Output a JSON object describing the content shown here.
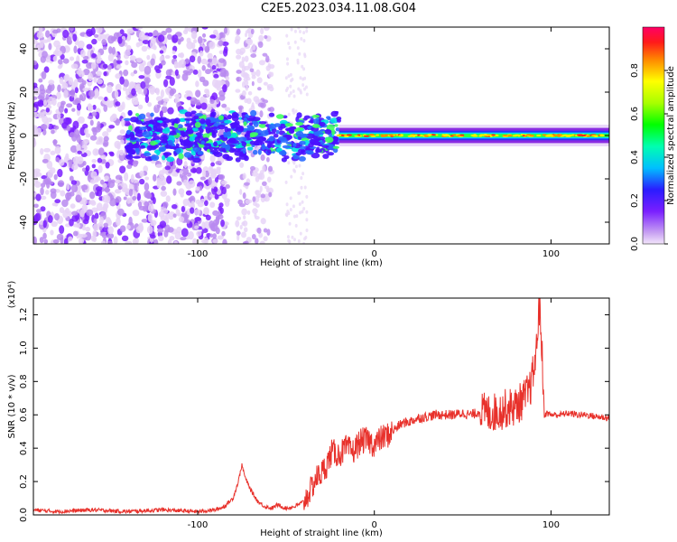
{
  "title": "C2E5.2023.034.11.08.G04",
  "colors": {
    "axis": "#000000",
    "snr_line": "#e8312b",
    "colormap": [
      "#e3c8f5",
      "#8a2be2",
      "#3a00ff",
      "#00e5ff",
      "#00ff40",
      "#ffff00",
      "#ff2020",
      "#ff0066"
    ]
  },
  "chart_data": [
    {
      "type": "heatmap",
      "xlabel": "Height of straight line (km)",
      "ylabel": "Frequency (Hz)",
      "xlim": [
        -193,
        133
      ],
      "ylim": [
        -50,
        50
      ],
      "x_ticks": [
        -100,
        0,
        100
      ],
      "y_ticks": [
        -40,
        -20,
        0,
        20,
        40
      ],
      "colorbar": {
        "label": "Normalized spectral amplitude",
        "range": [
          0.0,
          1.0
        ],
        "ticks": [
          "0.0",
          "0.2",
          "0.4",
          "0.6",
          "0.8"
        ]
      },
      "grid": false
    },
    {
      "type": "line",
      "xlabel": "Height of straight line (km)",
      "ylabel": "SNR (10 * v/v)",
      "y_multiplier": "(x10⁴)",
      "xlim": [
        -193,
        133
      ],
      "ylim": [
        0,
        1.3
      ],
      "x_ticks": [
        -100,
        0,
        100
      ],
      "y_ticks": [
        "0.0",
        "0.2",
        "0.4",
        "0.6",
        "0.8",
        "1.0",
        "1.2"
      ],
      "grid": false,
      "series": [
        {
          "color": "#e8312b",
          "x": [
            -193,
            -180,
            -160,
            -140,
            -120,
            -100,
            -90,
            -85,
            -80,
            -77,
            -75,
            -73,
            -70,
            -66,
            -62,
            -58,
            -55,
            -50,
            -45,
            -40,
            -36,
            -33,
            -30,
            -27,
            -24,
            -20,
            -16,
            -12,
            -8,
            -4,
            0,
            4,
            8,
            12,
            16,
            20,
            25,
            30,
            35,
            40,
            45,
            50,
            55,
            60,
            65,
            70,
            75,
            80,
            85,
            88,
            90,
            92,
            93,
            94,
            95,
            96,
            98,
            100,
            105,
            110,
            115,
            120,
            125,
            133
          ],
          "y": [
            0.03,
            0.02,
            0.03,
            0.02,
            0.03,
            0.02,
            0.03,
            0.05,
            0.1,
            0.2,
            0.3,
            0.22,
            0.15,
            0.08,
            0.05,
            0.04,
            0.06,
            0.04,
            0.05,
            0.08,
            0.15,
            0.22,
            0.25,
            0.3,
            0.38,
            0.36,
            0.4,
            0.38,
            0.44,
            0.45,
            0.42,
            0.46,
            0.48,
            0.52,
            0.55,
            0.56,
            0.58,
            0.59,
            0.6,
            0.6,
            0.6,
            0.61,
            0.6,
            0.62,
            0.61,
            0.62,
            0.64,
            0.65,
            0.7,
            0.75,
            0.85,
            1.0,
            1.27,
            1.18,
            0.95,
            0.6,
            0.61,
            0.6,
            0.6,
            0.61,
            0.6,
            0.6,
            0.59,
            0.58
          ]
        }
      ]
    }
  ]
}
